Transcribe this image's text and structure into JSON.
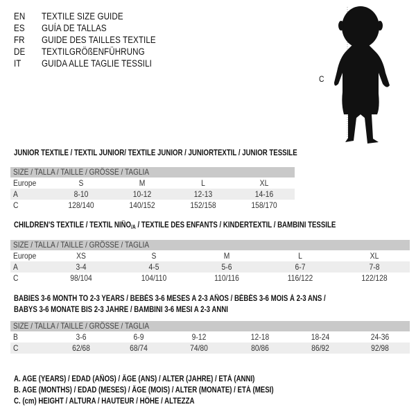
{
  "header": {
    "languages": [
      {
        "code": "EN",
        "title": "TEXTILE SIZE GUIDE"
      },
      {
        "code": "ES",
        "title": "GUÍA DE TALLAS"
      },
      {
        "code": "FR",
        "title": "GUIDE DES TAILLES TEXTILE"
      },
      {
        "code": "DE",
        "title": "TEXTILGRÖßENFÜHRUNG"
      },
      {
        "code": "IT",
        "title": "GUIDA ALLE TAGLIE TESSILI"
      }
    ]
  },
  "figure": {
    "height_label": "C",
    "icon": "child-silhouette-icon"
  },
  "junior": {
    "title": "JUNIOR TEXTILE / TEXTIL JUNIOR/ TEXTILE JUNIOR / JUNIORTEXTIL / JUNIOR TESSILE",
    "size_header": "SIZE / TALLA / TAILLE / GRÖSSE / TAGLIA",
    "rows": [
      {
        "label": "Europe",
        "values": [
          "S",
          "M",
          "L",
          "XL"
        ]
      },
      {
        "label": "A",
        "values": [
          "8-10",
          "10-12",
          "12-13",
          "14-16"
        ]
      },
      {
        "label": "C",
        "values": [
          "128/140",
          "140/152",
          "152/158",
          "158/170"
        ]
      }
    ]
  },
  "children": {
    "title_before": "CHILDREN'S TEXTILE / TEXTIL NIÑO",
    "title_sub": "/A",
    "title_after": " / TEXTILE DES ENFANTS / KINDERTEXTIL / BAMBINI TESSILE",
    "size_header": "SIZE / TALLA / TAILLE / GRÖSSE / TAGLIA",
    "rows": [
      {
        "label": "Europe",
        "values": [
          "XS",
          "S",
          "M",
          "L",
          "XL"
        ]
      },
      {
        "label": "A",
        "values": [
          "3-4",
          "4-5",
          "5-6",
          "6-7",
          "7-8"
        ]
      },
      {
        "label": "C",
        "values": [
          "98/104",
          "104/110",
          "110/116",
          "116/122",
          "122/128"
        ]
      }
    ]
  },
  "babies": {
    "title_line1": "BABIES 3-6 MONTH TO 2-3 YEARS / BEBÉS 3-6 MESES A 2-3 AÑOS / BÉBÉS 3-6 MOIS À 2-3 ANS /",
    "title_line2": "BABYS 3-6 MONATE BIS 2-3 JAHRE / BAMBINI 3-6 MESI A 2-3 ANNI",
    "size_header": "SIZE / TALLA / TAILLE / GRÖSSE / TAGLIA",
    "rows": [
      {
        "label": "B",
        "values": [
          "3-6",
          "6-9",
          "9-12",
          "12-18",
          "18-24",
          "24-36"
        ]
      },
      {
        "label": "C",
        "values": [
          "62/68",
          "68/74",
          "74/80",
          "80/86",
          "86/92",
          "92/98"
        ]
      }
    ]
  },
  "legend": [
    "A. AGE (YEARS) / EDAD (AÑOS) / ÂGE (ANS) / ALTER (JAHRE) / ETÀ (ANNI)",
    "B. AGE (MONTHS) / EDAD (MESES) / ÂGE (MOIS) / ALTER (MONATE) / ETÀ (MESI)",
    "C. (cm) HEIGHT / ALTURA / HAUTEUR / HÖHE / ALTEZZA"
  ]
}
